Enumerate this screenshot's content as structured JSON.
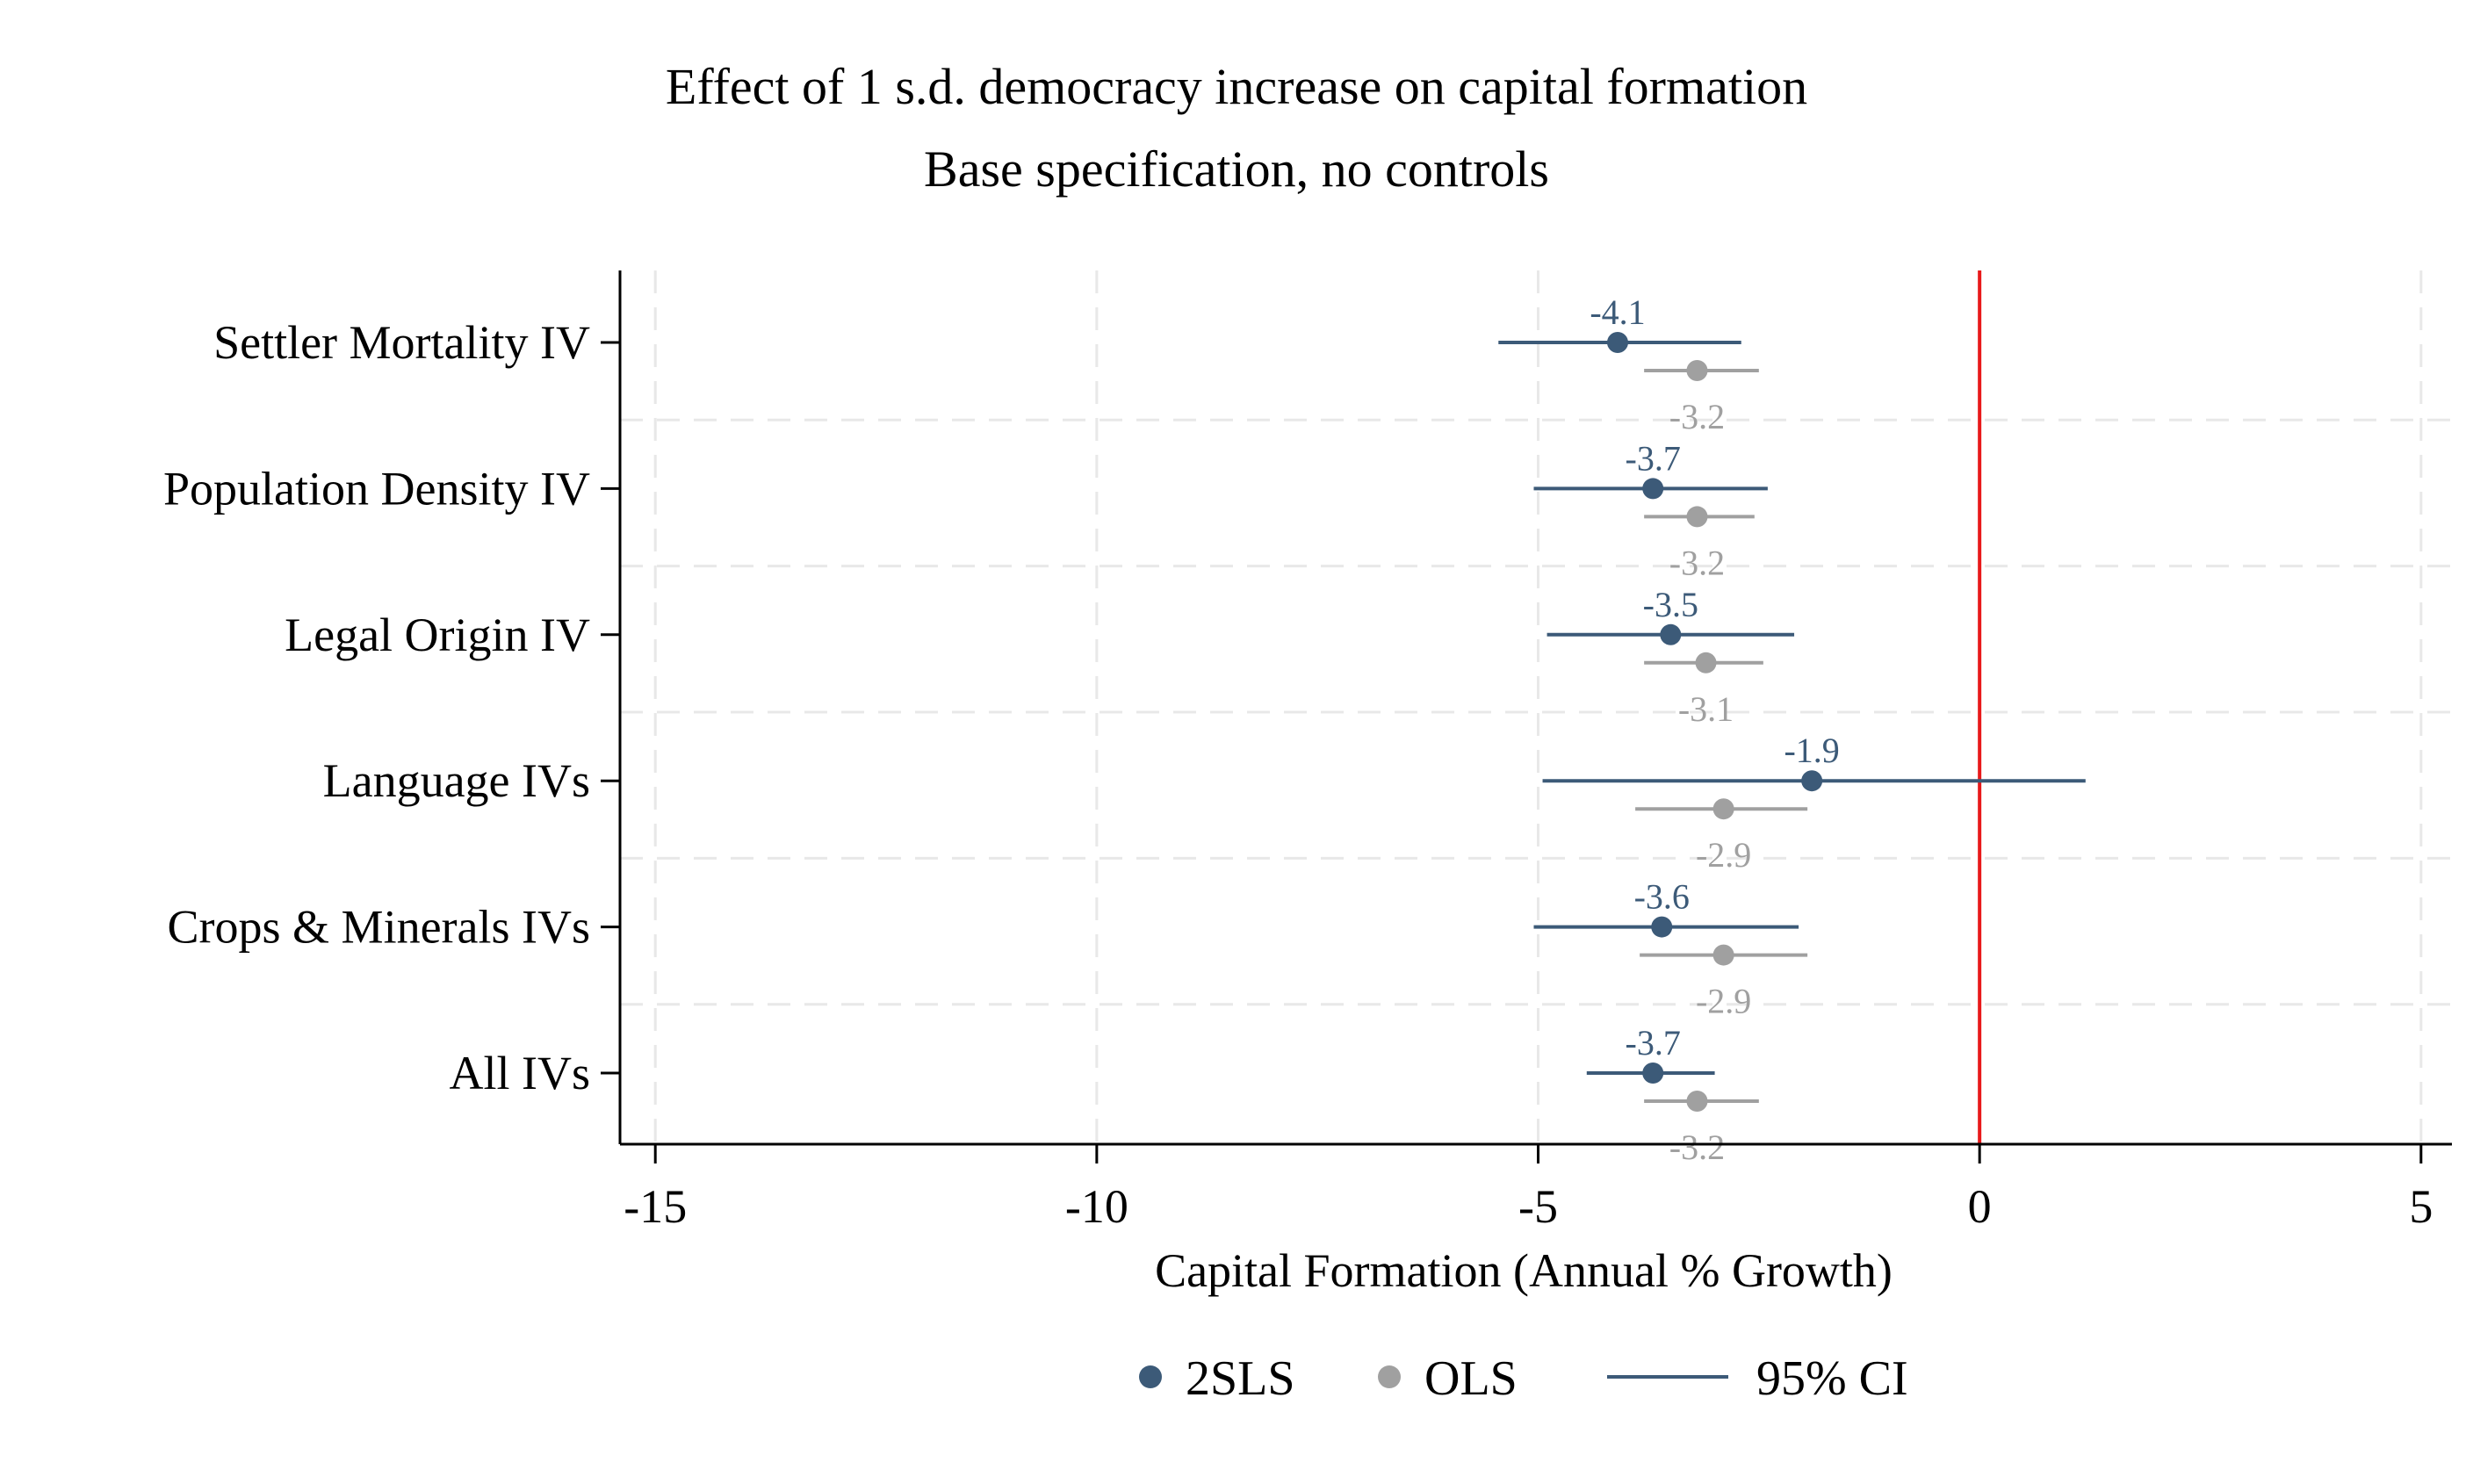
{
  "chart_data": {
    "type": "scatter",
    "subtype": "coefficient-plot",
    "title": "Effect of 1 s.d. democracy increase on capital formation",
    "subtitle": "Base specification, no controls",
    "xlabel": "Capital Formation (Annual % Growth)",
    "ylabel": "",
    "xlim": [
      -15.4,
      5.35
    ],
    "xticks": [
      -15,
      -10,
      -5,
      0,
      5
    ],
    "xtick_labels": [
      "-15",
      "-10",
      "-5",
      "0",
      "5"
    ],
    "reference_line": {
      "x": 0,
      "color": "#e8191a"
    },
    "grid": true,
    "legend": {
      "placement": "bottom"
    },
    "categories": [
      "Settler Mortality IV",
      "Population Density IV",
      "Legal Origin IV",
      "Language IVs",
      "Crops & Minerals IVs",
      "All IVs"
    ],
    "series": [
      {
        "name": "2SLS",
        "color": "#3c5a78",
        "values": [
          -4.1,
          -3.7,
          -3.5,
          -1.9,
          -3.6,
          -3.7
        ],
        "labels": [
          "-4.1",
          "-3.7",
          "-3.5",
          "-1.9",
          "-3.6",
          "-3.7"
        ],
        "ci_low": [
          -5.45,
          -5.05,
          -4.9,
          -4.95,
          -5.05,
          -4.45
        ],
        "ci_high": [
          -2.7,
          -2.4,
          -2.1,
          1.2,
          -2.05,
          -3.0
        ]
      },
      {
        "name": "OLS",
        "color": "#a0a0a0",
        "values": [
          -3.2,
          -3.2,
          -3.1,
          -2.9,
          -2.9,
          -3.2
        ],
        "labels": [
          "-3.2",
          "-3.2",
          "-3.1",
          "-2.9",
          "-2.9",
          "-3.2"
        ],
        "ci_low": [
          -3.8,
          -3.8,
          -3.8,
          -3.9,
          -3.85,
          -3.8
        ],
        "ci_high": [
          -2.5,
          -2.55,
          -2.45,
          -1.95,
          -1.95,
          -2.5
        ]
      }
    ],
    "legend_entries": [
      "2SLS",
      "OLS",
      "95% CI"
    ]
  }
}
